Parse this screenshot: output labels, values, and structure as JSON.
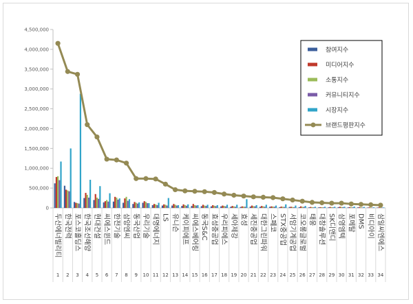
{
  "chart_data": {
    "type": "bar",
    "title": "",
    "xlabel": "",
    "ylabel": "",
    "ylim": [
      0,
      4500000
    ],
    "yticks": [
      0,
      500000,
      1000000,
      1500000,
      2000000,
      2500000,
      3000000,
      3500000,
      4000000,
      4500000
    ],
    "ytick_labels": [
      "0",
      "500,000",
      "1,000,000",
      "1,500,000",
      "2,000,000",
      "2,500,000",
      "3,000,000",
      "3,500,000",
      "4,000,000",
      "4,500,000"
    ],
    "grid": false,
    "legend_position": "top-right",
    "indices": [
      "1",
      "2",
      "3",
      "4",
      "5",
      "6",
      "7",
      "8",
      "9",
      "10",
      "11",
      "12",
      "13",
      "14",
      "15",
      "16",
      "17",
      "18",
      "19",
      "20",
      "21",
      "22",
      "23",
      "24",
      "25",
      "26",
      "27",
      "28",
      "29",
      "30",
      "31",
      "32",
      "33",
      "34"
    ],
    "categories": [
      "두산에너빌리티",
      "한국전력",
      "포스코홀딩스",
      "한국조선해양",
      "현대건설",
      "씨에스윈드",
      "한전기술",
      "삼양엔씨",
      "동국산업",
      "우리기술",
      "대명에너지",
      "LS",
      "유니슨",
      "케이피에프",
      "씨에스베어링",
      "동국S&C",
      "효성중공업",
      "우리피에스",
      "세아제강",
      "효성",
      "세진중공업",
      "대한그린파워",
      "스페코",
      "STX중공업",
      "서암기계공업",
      "코오롱글로벌",
      "태웅",
      "대창솔루션",
      "SK디앤디",
      "삼영엠텍",
      "포메탈",
      "DMS",
      "비디아이",
      "삼일씨엔에스"
    ],
    "series": [
      {
        "name": "참여지수",
        "color": "#3c5f9c",
        "kind": "bar",
        "values": [
          620000,
          560000,
          150000,
          250000,
          200000,
          140000,
          160000,
          130000,
          100000,
          130000,
          70000,
          60000,
          60000,
          50000,
          50000,
          45000,
          40000,
          40000,
          30000,
          25000,
          35000,
          30000,
          30000,
          20000,
          25000,
          20000,
          15000,
          15000,
          15000,
          20000,
          15000,
          15000,
          10000,
          10000
        ]
      },
      {
        "name": "미디어지수",
        "color": "#c0392b",
        "kind": "bar",
        "values": [
          780000,
          460000,
          130000,
          380000,
          350000,
          170000,
          280000,
          240000,
          150000,
          170000,
          100000,
          90000,
          100000,
          90000,
          100000,
          80000,
          70000,
          60000,
          50000,
          40000,
          60000,
          50000,
          40000,
          35000,
          30000,
          40000,
          25000,
          20000,
          25000,
          30000,
          20000,
          20000,
          15000,
          15000
        ]
      },
      {
        "name": "소통지수",
        "color": "#9bbb59",
        "kind": "bar",
        "values": [
          800000,
          440000,
          120000,
          330000,
          260000,
          200000,
          260000,
          280000,
          130000,
          150000,
          90000,
          80000,
          80000,
          70000,
          70000,
          60000,
          55000,
          50000,
          40000,
          35000,
          45000,
          40000,
          35000,
          30000,
          25000,
          30000,
          20000,
          18000,
          20000,
          25000,
          18000,
          15000,
          12000,
          12000
        ]
      },
      {
        "name": "커뮤니티지수",
        "color": "#7b5ca8",
        "kind": "bar",
        "values": [
          700000,
          420000,
          110000,
          260000,
          230000,
          160000,
          210000,
          180000,
          110000,
          120000,
          70000,
          60000,
          60000,
          55000,
          60000,
          50000,
          45000,
          40000,
          30000,
          30000,
          40000,
          30000,
          30000,
          25000,
          20000,
          25000,
          15000,
          15000,
          15000,
          20000,
          15000,
          12000,
          10000,
          10000
        ]
      },
      {
        "name": "시장지수",
        "color": "#31a4c9",
        "kind": "bar",
        "values": [
          1170000,
          1500000,
          2880000,
          710000,
          550000,
          370000,
          240000,
          220000,
          140000,
          120000,
          130000,
          250000,
          70000,
          90000,
          70000,
          80000,
          70000,
          80000,
          80000,
          220000,
          70000,
          80000,
          60000,
          90000,
          60000,
          50000,
          30000,
          30000,
          30000,
          30000,
          35000,
          25000,
          15000,
          12000
        ]
      },
      {
        "name": "브랜드평판지수",
        "color": "#948a54",
        "kind": "line",
        "values": [
          4150000,
          3440000,
          3370000,
          2100000,
          1790000,
          1230000,
          1210000,
          1130000,
          740000,
          740000,
          730000,
          600000,
          460000,
          430000,
          420000,
          410000,
          390000,
          350000,
          320000,
          300000,
          280000,
          270000,
          260000,
          230000,
          200000,
          170000,
          140000,
          130000,
          120000,
          120000,
          100000,
          90000,
          80000,
          70000
        ]
      }
    ]
  }
}
